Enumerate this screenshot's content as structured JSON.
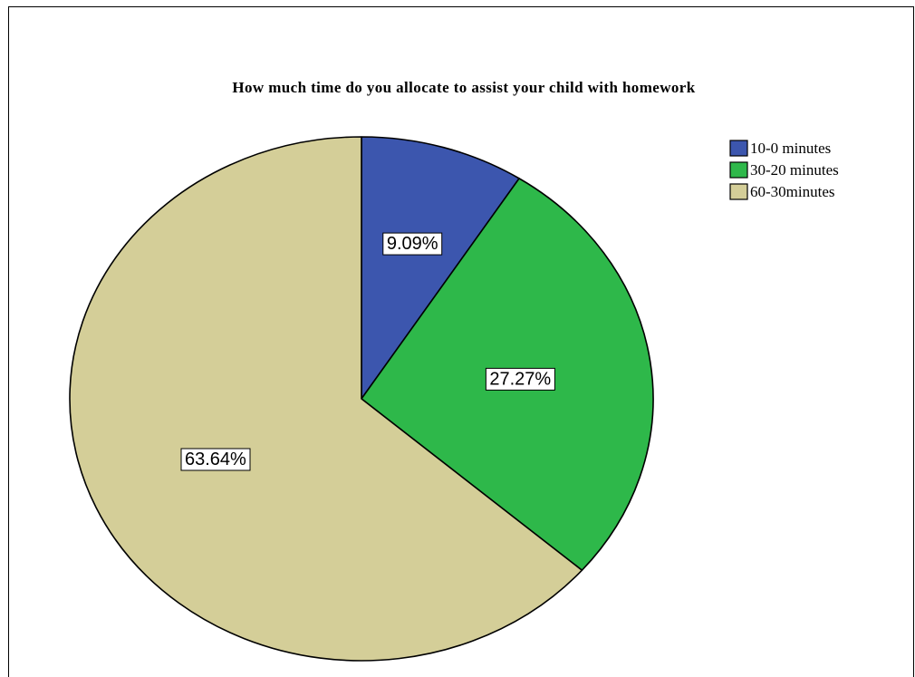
{
  "chart_data": {
    "type": "pie",
    "title": "How much time do you allocate to assist your child with homework",
    "categories": [
      "10-0 minutes",
      "30-20 minutes",
      "60-30minutes"
    ],
    "values": [
      9.09,
      27.27,
      63.64
    ],
    "data_labels": [
      "9.09%",
      "27.27%",
      "63.64%"
    ],
    "colors": [
      "#3c56ae",
      "#2eb84a",
      "#d4ce98"
    ],
    "start_angle": "12 o'clock",
    "direction": "clockwise",
    "legend": {
      "placement": "top-right",
      "entries": [
        "10-0 minutes",
        "30-20 minutes",
        "60-30minutes"
      ]
    }
  }
}
